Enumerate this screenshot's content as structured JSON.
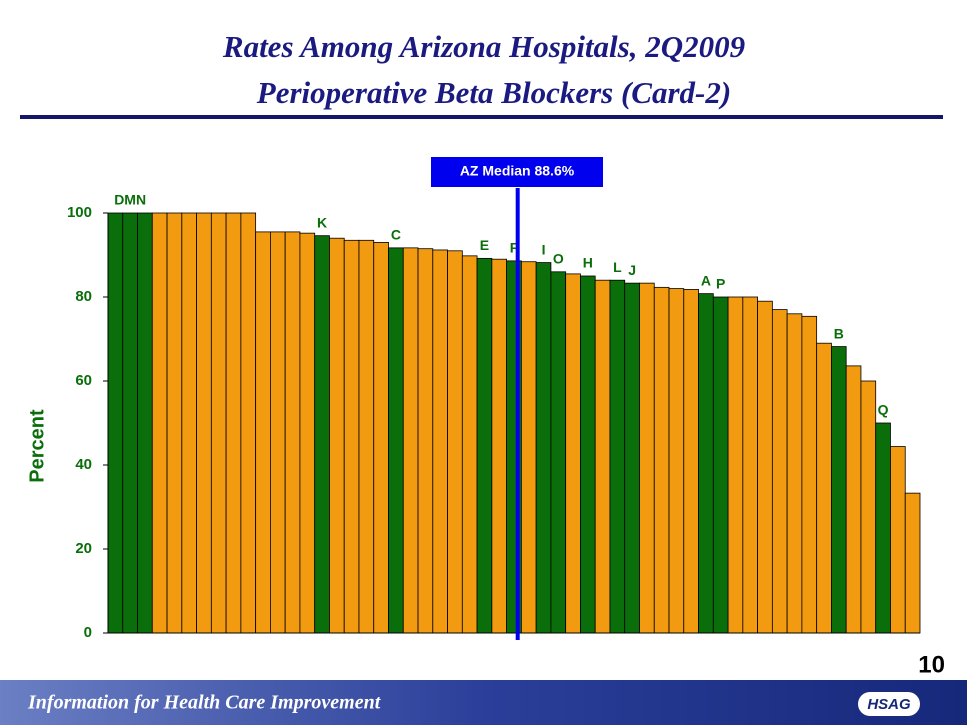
{
  "chart_data": {
    "type": "bar",
    "title": "Rates Among Arizona Hospitals, 2Q2009",
    "subtitle": "Perioperative Beta Blockers (Card-2)",
    "ylabel": "Percent",
    "values": [
      100,
      100,
      100,
      100,
      100,
      100,
      100,
      100,
      100,
      100,
      95.5,
      95.5,
      95.5,
      95.2,
      94.6,
      94,
      93.5,
      93.5,
      93,
      91.7,
      91.7,
      91.5,
      91.2,
      91,
      89.8,
      89.2,
      89,
      88.6,
      88.4,
      88.2,
      86,
      85.5,
      85,
      84,
      84,
      83.3,
      83.3,
      82.3,
      82,
      81.8,
      80.8,
      80,
      80,
      80,
      79,
      77,
      76,
      75.4,
      69,
      68.2,
      63.6,
      60,
      50,
      44.4,
      33.3
    ],
    "colors": [
      "#0a6e0a",
      "#0a6e0a",
      "#0a6e0a",
      "#f29a10",
      "#f29a10",
      "#f29a10",
      "#f29a10",
      "#f29a10",
      "#f29a10",
      "#f29a10",
      "#f29a10",
      "#f29a10",
      "#f29a10",
      "#f29a10",
      "#0a6e0a",
      "#f29a10",
      "#f29a10",
      "#f29a10",
      "#f29a10",
      "#0a6e0a",
      "#f29a10",
      "#f29a10",
      "#f29a10",
      "#f29a10",
      "#f29a10",
      "#0a6e0a",
      "#f29a10",
      "#0a6e0a",
      "#f29a10",
      "#0a6e0a",
      "#0a6e0a",
      "#f29a10",
      "#0a6e0a",
      "#f29a10",
      "#0a6e0a",
      "#0a6e0a",
      "#f29a10",
      "#f29a10",
      "#f29a10",
      "#f29a10",
      "#0a6e0a",
      "#0a6e0a",
      "#f29a10",
      "#f29a10",
      "#f29a10",
      "#f29a10",
      "#f29a10",
      "#f29a10",
      "#f29a10",
      "#0a6e0a",
      "#f29a10",
      "#f29a10",
      "#0a6e0a",
      "#f29a10",
      "#f29a10"
    ],
    "bar_labels": [
      null,
      "DMN",
      null,
      null,
      null,
      null,
      null,
      null,
      null,
      null,
      null,
      null,
      null,
      null,
      "K",
      null,
      null,
      null,
      null,
      "C",
      null,
      null,
      null,
      null,
      null,
      "E",
      null,
      "F",
      null,
      "I",
      "O",
      null,
      "H",
      null,
      "L",
      "J",
      null,
      null,
      null,
      null,
      "A",
      "P",
      null,
      null,
      null,
      null,
      null,
      null,
      null,
      "B",
      null,
      null,
      "Q",
      null,
      null
    ],
    "median": {
      "label": "AZ Median 88.6%",
      "value": 88.6
    },
    "ylim": [
      0,
      100
    ],
    "yticks": [
      0,
      20,
      40,
      60,
      80,
      100
    ]
  },
  "page_number": "10",
  "footer": {
    "tagline": "Information for Health Care Improvement",
    "logo": "HSAG"
  }
}
